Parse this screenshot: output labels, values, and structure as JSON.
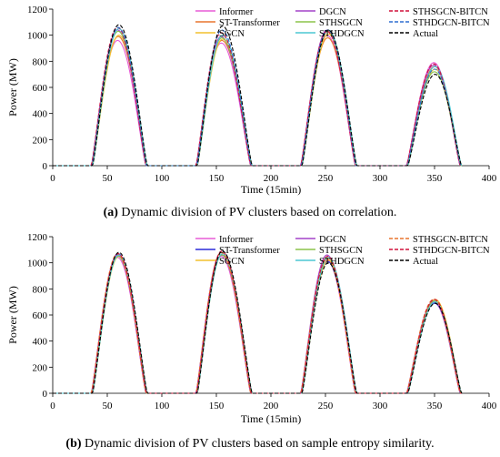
{
  "figure": {
    "captions": [
      {
        "tag": "(a)",
        "text": "Dynamic division of PV clusters based on correlation."
      },
      {
        "tag": "(b)",
        "text": "Dynamic division of PV clusters based on sample entropy similarity."
      }
    ]
  },
  "chart_data": [
    {
      "type": "line",
      "panel": "a",
      "xlabel": "Time (15min)",
      "ylabel": "Power (MW)",
      "xlim": [
        0,
        400
      ],
      "ylim": [
        0,
        1200
      ],
      "xticks": [
        0,
        50,
        100,
        150,
        200,
        250,
        300,
        350,
        400
      ],
      "yticks": [
        0,
        200,
        400,
        600,
        800,
        1000,
        1200
      ],
      "grid": false,
      "legend_position": "top-right",
      "peaks": [
        {
          "center": 60,
          "start": 36,
          "end": 86
        },
        {
          "center": 155,
          "start": 132,
          "end": 182
        },
        {
          "center": 252,
          "start": 228,
          "end": 278
        },
        {
          "center": 350,
          "start": 325,
          "end": 374
        }
      ],
      "series": [
        {
          "name": "Informer",
          "color": "#e75bd6",
          "dash": "",
          "peak_values": [
            960,
            940,
            1000,
            790
          ]
        },
        {
          "name": "ST-Transformer",
          "color": "#e8752e",
          "dash": "",
          "peak_values": [
            990,
            960,
            980,
            760
          ]
        },
        {
          "name": "SGCN",
          "color": "#f2c12e",
          "dash": "",
          "peak_values": [
            1000,
            970,
            1010,
            740
          ]
        },
        {
          "name": "DGCN",
          "color": "#a442c8",
          "dash": "",
          "peak_values": [
            1040,
            990,
            1040,
            770
          ]
        },
        {
          "name": "STHSGCN",
          "color": "#8bc34a",
          "dash": "",
          "peak_values": [
            1030,
            980,
            1030,
            720
          ]
        },
        {
          "name": "STHDGCN",
          "color": "#4cc7d4",
          "dash": "",
          "peak_values": [
            1050,
            1000,
            1040,
            760
          ]
        },
        {
          "name": "STHSGCN-BITCN",
          "color": "#d0103a",
          "dash": "4,2",
          "peak_values": [
            1060,
            1020,
            1030,
            780
          ]
        },
        {
          "name": "STHDGCN-BITCN",
          "color": "#2f6fd0",
          "dash": "4,2",
          "peak_values": [
            1060,
            1040,
            1040,
            740
          ]
        },
        {
          "name": "Actual",
          "color": "#000000",
          "dash": "4,2",
          "peak_values": [
            1080,
            1070,
            1040,
            700
          ]
        }
      ]
    },
    {
      "type": "line",
      "panel": "b",
      "xlabel": "Time (15min)",
      "ylabel": "Power (MW)",
      "xlim": [
        0,
        400
      ],
      "ylim": [
        0,
        1200
      ],
      "xticks": [
        0,
        50,
        100,
        150,
        200,
        250,
        300,
        350,
        400
      ],
      "yticks": [
        0,
        200,
        400,
        600,
        800,
        1000,
        1200
      ],
      "grid": false,
      "legend_position": "top-right",
      "peaks": [
        {
          "center": 60,
          "start": 36,
          "end": 86
        },
        {
          "center": 155,
          "start": 132,
          "end": 182
        },
        {
          "center": 252,
          "start": 228,
          "end": 278
        },
        {
          "center": 350,
          "start": 325,
          "end": 374
        }
      ],
      "series": [
        {
          "name": "Informer",
          "color": "#e75bd6",
          "dash": "",
          "peak_values": [
            1040,
            1050,
            1020,
            710
          ]
        },
        {
          "name": "ST-Transformer",
          "color": "#2b2bd8",
          "dash": "",
          "peak_values": [
            1070,
            1060,
            1010,
            690
          ]
        },
        {
          "name": "SGCN",
          "color": "#f2c12e",
          "dash": "",
          "peak_values": [
            1050,
            1070,
            1020,
            720
          ]
        },
        {
          "name": "DGCN",
          "color": "#a442c8",
          "dash": "",
          "peak_values": [
            1060,
            1080,
            1060,
            700
          ]
        },
        {
          "name": "STHSGCN",
          "color": "#8bc34a",
          "dash": "",
          "peak_values": [
            1050,
            1060,
            1040,
            710
          ]
        },
        {
          "name": "STHDGCN",
          "color": "#4cc7d4",
          "dash": "",
          "peak_values": [
            1060,
            1070,
            1040,
            700
          ]
        },
        {
          "name": "STHSGCN-BITCN",
          "color": "#e8752e",
          "dash": "4,2",
          "peak_values": [
            1070,
            1080,
            1030,
            720
          ]
        },
        {
          "name": "STHDGCN-BITCN",
          "color": "#d0103a",
          "dash": "4,2",
          "peak_values": [
            1070,
            1090,
            1050,
            720
          ]
        },
        {
          "name": "Actual",
          "color": "#000000",
          "dash": "4,2",
          "peak_values": [
            1080,
            1090,
            1000,
            690
          ]
        }
      ]
    }
  ]
}
